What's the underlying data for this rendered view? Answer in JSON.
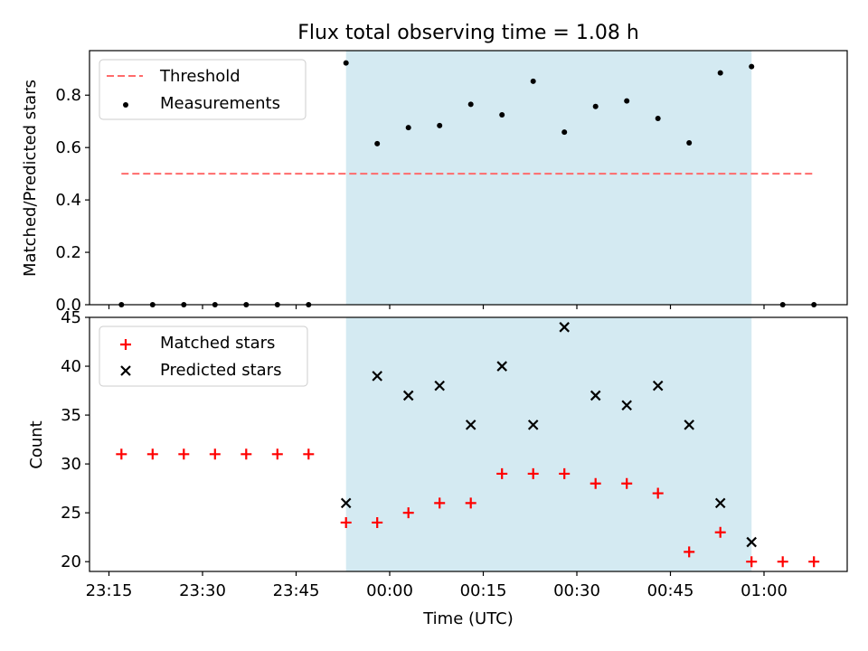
{
  "chart_data": [
    {
      "type": "scatter",
      "title": "Flux total observing time = 1.08 h",
      "xlabel": "",
      "ylabel": "Matched/Predicted stars",
      "ylim": [
        0,
        0.97
      ],
      "yticks": [
        "0.0",
        "0.2",
        "0.4",
        "0.6",
        "0.8"
      ],
      "xticks": [
        "23:15",
        "23:30",
        "23:45",
        "00:00",
        "00:15",
        "00:30",
        "00:45",
        "01:00"
      ],
      "xtick_labels_visible": false,
      "shaded_span": {
        "start": "23:53",
        "end": "00:58",
        "color": "#add8e6"
      },
      "legend_position": "upper left",
      "threshold": {
        "label": "Threshold",
        "value": 0.5,
        "x_start": "23:17",
        "x_end": "01:08",
        "color": "#ff6b6b",
        "style": "dashed"
      },
      "series": [
        {
          "name": "Measurements",
          "marker": "dot",
          "color": "#000000",
          "x": [
            "23:17",
            "23:22",
            "23:27",
            "23:32",
            "23:37",
            "23:42",
            "23:47",
            "23:53",
            "23:58",
            "00:03",
            "00:08",
            "00:13",
            "00:18",
            "00:23",
            "00:28",
            "00:33",
            "00:38",
            "00:43",
            "00:48",
            "00:53",
            "00:58",
            "01:03",
            "01:08"
          ],
          "y": [
            0,
            0,
            0,
            0,
            0,
            0,
            0,
            0.923,
            0.615,
            0.676,
            0.684,
            0.765,
            0.725,
            0.853,
            0.659,
            0.757,
            0.778,
            0.711,
            0.618,
            0.885,
            0.909,
            0,
            0
          ]
        }
      ]
    },
    {
      "type": "scatter",
      "title": "",
      "xlabel": "Time (UTC)",
      "ylabel": "Count",
      "ylim": [
        19,
        45
      ],
      "yticks": [
        "20",
        "25",
        "30",
        "35",
        "40",
        "45"
      ],
      "xticks": [
        "23:15",
        "23:30",
        "23:45",
        "00:00",
        "00:15",
        "00:30",
        "00:45",
        "01:00"
      ],
      "shaded_span": {
        "start": "23:53",
        "end": "00:58",
        "color": "#add8e6"
      },
      "legend_position": "upper left",
      "series": [
        {
          "name": "Matched stars",
          "marker": "plus",
          "color": "#ff0000",
          "x": [
            "23:17",
            "23:22",
            "23:27",
            "23:32",
            "23:37",
            "23:42",
            "23:47",
            "23:53",
            "23:58",
            "00:03",
            "00:08",
            "00:13",
            "00:18",
            "00:23",
            "00:28",
            "00:33",
            "00:38",
            "00:43",
            "00:48",
            "00:53",
            "00:58",
            "01:03",
            "01:08"
          ],
          "y": [
            31,
            31,
            31,
            31,
            31,
            31,
            31,
            24,
            24,
            25,
            26,
            26,
            29,
            29,
            29,
            28,
            28,
            27,
            21,
            23,
            20,
            20,
            20
          ]
        },
        {
          "name": "Predicted stars",
          "marker": "x",
          "color": "#000000",
          "x": [
            "23:53",
            "23:58",
            "00:03",
            "00:08",
            "00:13",
            "00:18",
            "00:23",
            "00:28",
            "00:33",
            "00:38",
            "00:43",
            "00:48",
            "00:53",
            "00:58"
          ],
          "y": [
            26,
            39,
            37,
            38,
            34,
            40,
            34,
            44,
            37,
            36,
            38,
            34,
            26,
            22
          ]
        }
      ]
    }
  ]
}
